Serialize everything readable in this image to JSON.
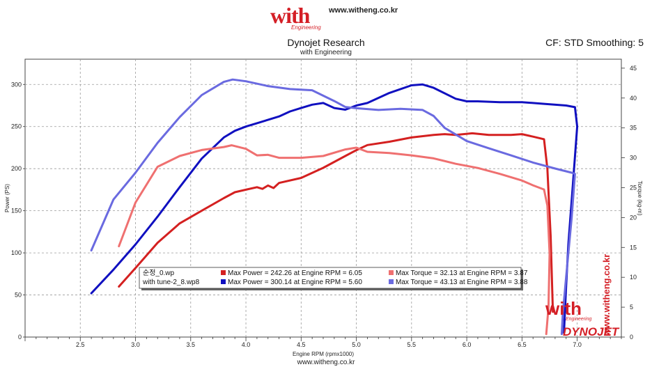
{
  "header": {
    "logo_text": "with",
    "logo_sub": "Engineering",
    "url": "www.witheng.co.kr",
    "small_lines": [
      "",
      ""
    ]
  },
  "colors": {
    "red": "#d42020",
    "light_red": "#ef7070",
    "blue": "#1010c0",
    "light_blue": "#6a6ae0",
    "grid": "#9a9a9a",
    "watermark": "#d41f26"
  },
  "chart_data": {
    "type": "line",
    "title": "Dynojet Research",
    "subtitle": "with Engineering",
    "corner_label": "CF: STD Smoothing: 5",
    "xlabel": "Engine RPM (rpmx1000)",
    "ylabel": "Power (PS)",
    "y2label": "Torque (kg-m)",
    "xlim": [
      2.0,
      7.4
    ],
    "ylim": [
      0,
      330
    ],
    "y2lim": [
      0,
      46.5
    ],
    "x_ticks": [
      "2.5",
      "3.0",
      "3.5",
      "4.0",
      "4.5",
      "5.0",
      "5.5",
      "6.0",
      "6.5",
      "7.0"
    ],
    "y_ticks": [
      "0",
      "50",
      "100",
      "150",
      "200",
      "250",
      "300"
    ],
    "y2_ticks": [
      "0",
      "5",
      "10",
      "15",
      "20",
      "25",
      "30",
      "35",
      "40",
      "45"
    ],
    "grid": true,
    "footer": "www.witheng.co.kr",
    "watermark": {
      "text": "www.witheng.co.kr",
      "logo": "with",
      "logo_sub": "Engineering",
      "brand": "DYNOJET"
    },
    "legend": {
      "runs": [
        {
          "file": "순정_0.wp",
          "power": "Max Power = 242.26 at Engine RPM = 6.05",
          "torque": "Max Torque = 32.13 at Engine RPM = 3.87",
          "power_color": "#d42020",
          "torque_color": "#ef7070"
        },
        {
          "file": "with tune-2_8.wp8",
          "power": "Max Power = 300.14 at Engine RPM = 5.60",
          "torque": "Max Torque = 43.13 at Engine RPM = 3.88",
          "power_color": "#1010c0",
          "torque_color": "#6a6ae0"
        }
      ]
    },
    "series": [
      {
        "name": "순정_0.wp Power",
        "axis": "left",
        "color": "#d42020",
        "x": [
          2.85,
          3.0,
          3.2,
          3.4,
          3.6,
          3.8,
          3.9,
          4.0,
          4.1,
          4.15,
          4.2,
          4.25,
          4.3,
          4.5,
          4.7,
          4.9,
          5.0,
          5.1,
          5.3,
          5.5,
          5.7,
          5.8,
          5.9,
          6.05,
          6.2,
          6.4,
          6.5,
          6.6,
          6.7,
          6.73,
          6.76,
          6.78
        ],
        "y": [
          60,
          82,
          112,
          135,
          150,
          165,
          172,
          175,
          178,
          176,
          180,
          177,
          183,
          189,
          201,
          215,
          222,
          228,
          232,
          237,
          240,
          241,
          240,
          242,
          240,
          240,
          241,
          238,
          235,
          200,
          120,
          30
        ]
      },
      {
        "name": "with tune-2_8.wp8 Power",
        "axis": "left",
        "color": "#1010c0",
        "x": [
          2.6,
          2.8,
          3.0,
          3.2,
          3.4,
          3.6,
          3.8,
          3.9,
          4.0,
          4.1,
          4.2,
          4.3,
          4.4,
          4.5,
          4.6,
          4.7,
          4.8,
          4.9,
          5.0,
          5.1,
          5.3,
          5.5,
          5.6,
          5.7,
          5.9,
          6.0,
          6.1,
          6.3,
          6.5,
          6.7,
          6.9,
          6.98,
          7.0,
          6.96,
          6.92,
          6.9,
          6.88
        ],
        "y": [
          52,
          80,
          110,
          143,
          178,
          212,
          237,
          245,
          250,
          254,
          258,
          262,
          268,
          272,
          276,
          278,
          272,
          270,
          275,
          278,
          290,
          299,
          300,
          296,
          283,
          280,
          280,
          279,
          279,
          277,
          275,
          273,
          250,
          180,
          110,
          60,
          5
        ]
      },
      {
        "name": "순정_0.wp Torque",
        "axis": "right",
        "color": "#ef7070",
        "x": [
          2.85,
          3.0,
          3.2,
          3.4,
          3.6,
          3.8,
          3.87,
          4.0,
          4.1,
          4.2,
          4.3,
          4.5,
          4.7,
          4.9,
          5.0,
          5.1,
          5.3,
          5.5,
          5.7,
          5.9,
          6.1,
          6.3,
          6.5,
          6.6,
          6.7,
          6.73,
          6.75,
          6.74,
          6.72
        ],
        "y": [
          15.2,
          22.5,
          28.5,
          30.3,
          31.3,
          31.8,
          32.1,
          31.5,
          30.4,
          30.5,
          30.0,
          30.0,
          30.3,
          31.4,
          31.7,
          31.0,
          30.8,
          30.4,
          29.9,
          29.0,
          28.3,
          27.3,
          26.2,
          25.4,
          24.7,
          22.0,
          14.0,
          5.0,
          0.5
        ]
      },
      {
        "name": "with tune-2_8.wp8 Torque",
        "axis": "right",
        "color": "#6a6ae0",
        "x": [
          2.6,
          2.8,
          3.0,
          3.2,
          3.4,
          3.6,
          3.8,
          3.88,
          4.0,
          4.2,
          4.4,
          4.6,
          4.8,
          4.9,
          5.0,
          5.2,
          5.4,
          5.6,
          5.7,
          5.8,
          6.0,
          6.2,
          6.4,
          6.6,
          6.8,
          6.95,
          6.98,
          6.95,
          6.9,
          6.87,
          6.86
        ],
        "y": [
          14.5,
          23.0,
          27.5,
          32.5,
          36.8,
          40.5,
          42.7,
          43.1,
          42.8,
          42.0,
          41.5,
          41.3,
          39.5,
          38.5,
          38.3,
          38.0,
          38.2,
          38.0,
          37.0,
          35.0,
          32.8,
          31.6,
          30.4,
          29.2,
          28.2,
          27.5,
          27.3,
          20.0,
          10.0,
          4.0,
          0.5
        ]
      }
    ]
  }
}
